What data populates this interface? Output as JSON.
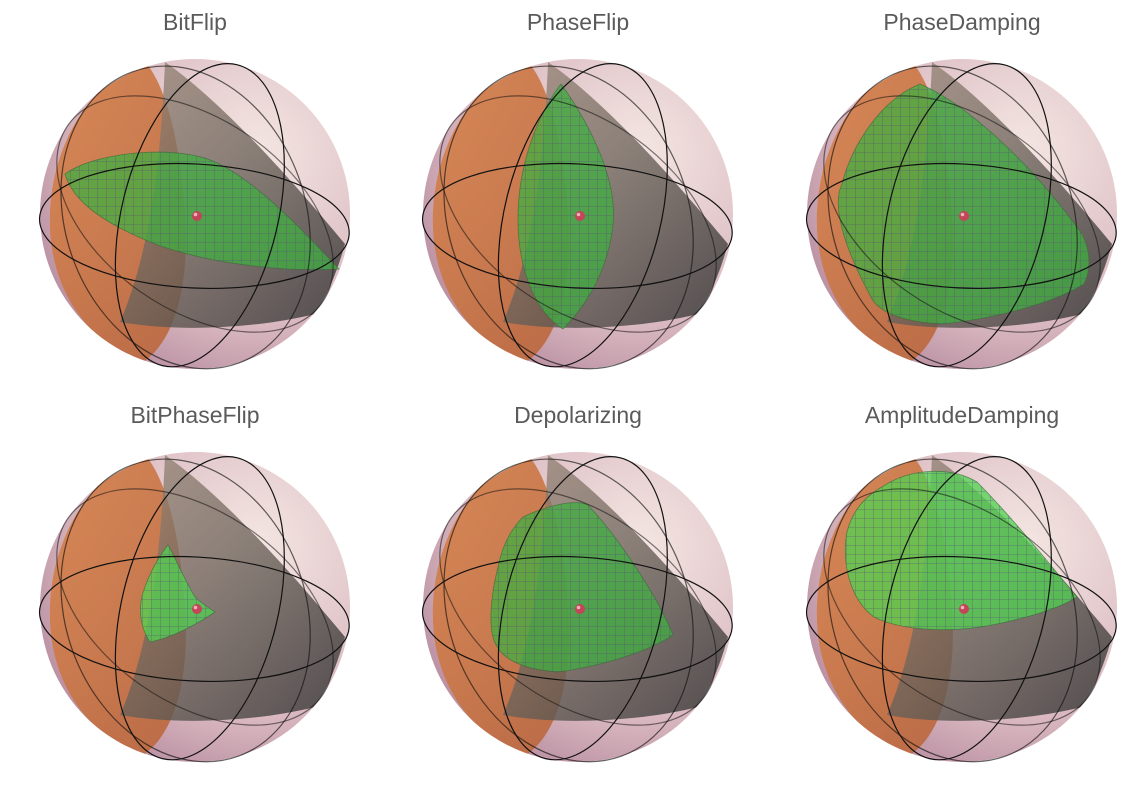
{
  "panels": [
    {
      "title": "BitFlip",
      "surface": "bitflip"
    },
    {
      "title": "PhaseFlip",
      "surface": "phaseflip"
    },
    {
      "title": "PhaseDamping",
      "surface": "phasedamping"
    },
    {
      "title": "BitPhaseFlip",
      "surface": "bitphaseflip"
    },
    {
      "title": "Depolarizing",
      "surface": "depolarizing"
    },
    {
      "title": "AmplitudeDamping",
      "surface": "amplitudedamping"
    }
  ],
  "colors": {
    "title": "#5a5a5a",
    "sphere_light": "#f4e6e2",
    "sphere_mid": "#d9b8c0",
    "hemisphere": "#d8844c",
    "cone": "#7d6a5a",
    "surface": "#3fae3f",
    "surface_bright": "#4fd44f",
    "grid": "#5a4f7a",
    "center_point": "#c2455a",
    "circles": "#111111"
  }
}
